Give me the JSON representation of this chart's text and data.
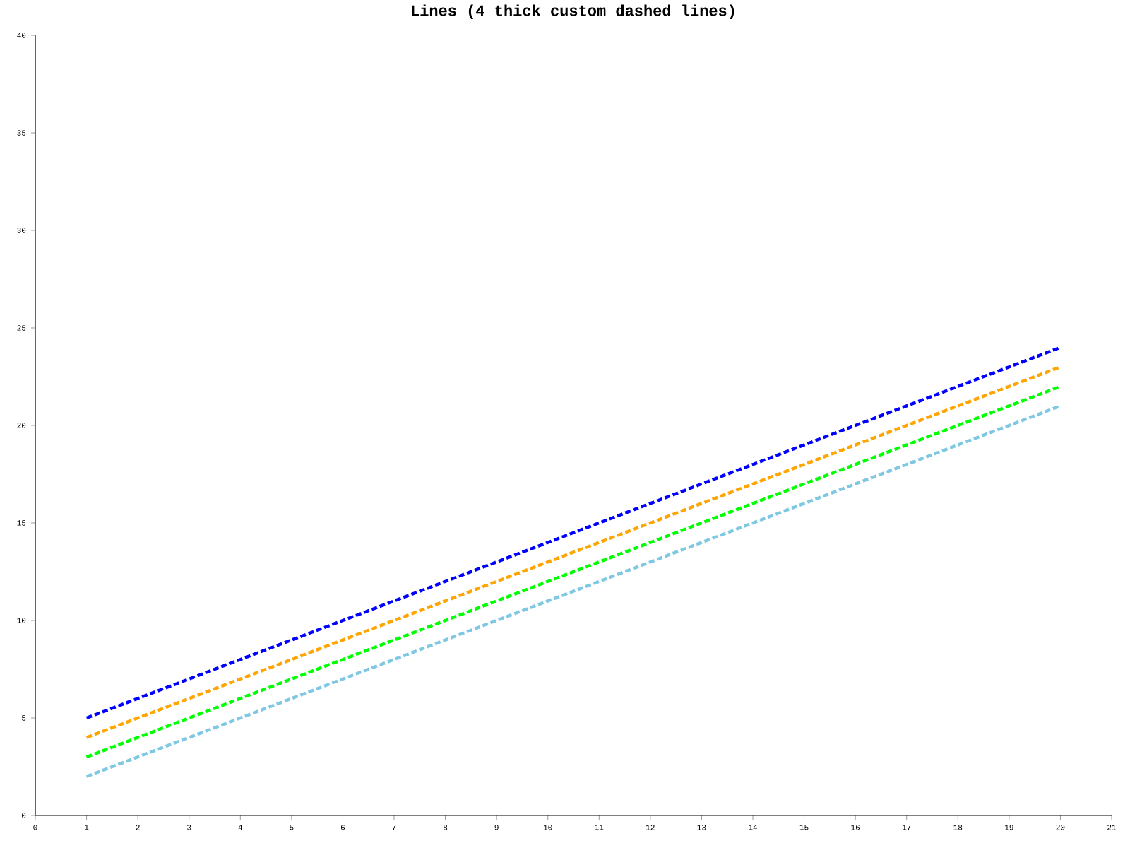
{
  "chart_data": {
    "type": "line",
    "title": "Lines (4 thick custom dashed lines)",
    "x": [
      1,
      2,
      3,
      4,
      5,
      6,
      7,
      8,
      9,
      10,
      11,
      12,
      13,
      14,
      15,
      16,
      17,
      18,
      19,
      20
    ],
    "series": [
      {
        "color": "#0000ff",
        "values": [
          5,
          6,
          7,
          8,
          9,
          10,
          11,
          12,
          13,
          14,
          15,
          16,
          17,
          18,
          19,
          20,
          21,
          22,
          23,
          24
        ]
      },
      {
        "color": "#ffa500",
        "values": [
          4,
          5,
          6,
          7,
          8,
          9,
          10,
          11,
          12,
          13,
          14,
          15,
          16,
          17,
          18,
          19,
          20,
          21,
          22,
          23
        ]
      },
      {
        "color": "#00ff00",
        "values": [
          3,
          4,
          5,
          6,
          7,
          8,
          9,
          10,
          11,
          12,
          13,
          14,
          15,
          16,
          17,
          18,
          19,
          20,
          21,
          22
        ]
      },
      {
        "color": "#7ec8e3",
        "values": [
          2,
          3,
          4,
          5,
          6,
          7,
          8,
          9,
          10,
          11,
          12,
          13,
          14,
          15,
          16,
          17,
          18,
          19,
          20,
          21
        ]
      }
    ],
    "xlim": [
      0,
      21
    ],
    "xticks": [
      0,
      1,
      2,
      3,
      4,
      5,
      6,
      7,
      8,
      9,
      10,
      11,
      12,
      13,
      14,
      15,
      16,
      17,
      18,
      19,
      20,
      21
    ],
    "ylim": [
      0,
      40
    ],
    "yticks": [
      0,
      5,
      10,
      15,
      20,
      25,
      30,
      35,
      40
    ],
    "grid": false,
    "marker": "none",
    "line_style": "dashed"
  }
}
